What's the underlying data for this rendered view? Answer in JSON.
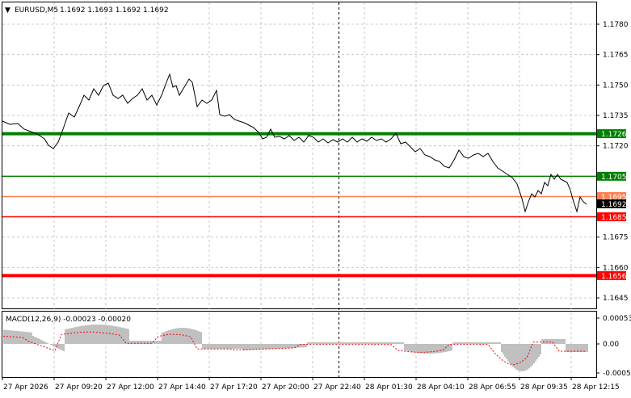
{
  "header": {
    "symbol_timeframe": "EURUSD,M5",
    "prices": "1.1692 1.1693 1.1692 1.1692"
  },
  "price_axis": {
    "ticks": [
      "1.1780",
      "1.1765",
      "1.1750",
      "1.1735",
      "1.1720",
      "1.1675",
      "1.1660",
      "1.1645"
    ]
  },
  "levels": [
    {
      "value": "1.1726",
      "color": "#008000",
      "thick": true
    },
    {
      "value": "1.1705",
      "color": "#008000",
      "thick": false
    },
    {
      "value": "1.1695",
      "color": "#ff7f50",
      "thick": false
    },
    {
      "value": "1.1685",
      "color": "#ff0000",
      "thick": false
    },
    {
      "value": "1.1656",
      "color": "#ff0000",
      "thick": true
    }
  ],
  "current_price": "1.1692",
  "macd": {
    "title": "MACD(12,26,9) -0.00023 -0.00020",
    "ticks": [
      "0.00053",
      "0.00",
      "-0.00058"
    ]
  },
  "time_axis": [
    "27 Apr 2026",
    "27 Apr 09:20",
    "27 Apr 12:00",
    "27 Apr 14:40",
    "27 Apr 17:20",
    "27 Apr 20:00",
    "27 Apr 22:40",
    "28 Apr 01:30",
    "28 Apr 04:10",
    "28 Apr 06:55",
    "28 Apr 09:35",
    "28 Apr 12:15"
  ],
  "chart_data": {
    "type": "line",
    "title": "EURUSD,M5 1.1692 1.1693 1.1692 1.1692",
    "x": [
      "27 Apr 2026",
      "27 Apr 09:20",
      "27 Apr 12:00",
      "27 Apr 14:40",
      "27 Apr 17:20",
      "27 Apr 20:00",
      "27 Apr 22:40",
      "28 Apr 01:30",
      "28 Apr 04:10",
      "28 Apr 06:55",
      "28 Apr 09:35",
      "28 Apr 12:15"
    ],
    "series": [
      {
        "name": "EURUSD,M5",
        "values": [
          1.173,
          1.1722,
          1.175,
          1.1752,
          1.1734,
          1.1724,
          1.1722,
          1.1723,
          1.1714,
          1.1706,
          1.1704,
          1.1692
        ]
      }
    ],
    "ylim": [
      1.164,
      1.1791
    ],
    "grid": true
  }
}
